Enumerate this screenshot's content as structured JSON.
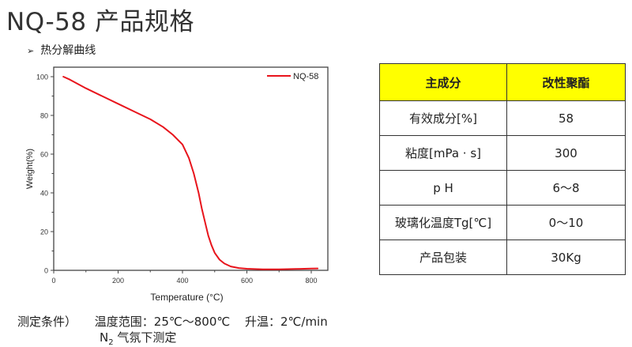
{
  "page": {
    "title": "NQ-58 产品规格",
    "subheading_bullet": "➢",
    "subheading": "热分解曲线"
  },
  "chart_data": {
    "type": "line",
    "title": "",
    "xlabel": "Temperature (°C)",
    "ylabel": "Weight(%)",
    "xlim": [
      0,
      850
    ],
    "ylim": [
      0,
      105
    ],
    "xticks": [
      0,
      200,
      400,
      600,
      800
    ],
    "yticks": [
      0,
      20,
      40,
      60,
      80,
      100
    ],
    "grid": false,
    "legend_position": "top-right",
    "series": [
      {
        "name": "NQ-58",
        "color": "#e8141c",
        "x": [
          30,
          50,
          100,
          150,
          200,
          250,
          300,
          340,
          370,
          400,
          420,
          435,
          450,
          460,
          470,
          480,
          490,
          500,
          515,
          530,
          550,
          575,
          600,
          650,
          700,
          750,
          800,
          820
        ],
        "y": [
          100,
          98.5,
          94,
          90,
          86,
          82,
          78,
          74,
          70,
          65,
          58,
          50,
          40,
          32,
          25,
          18,
          13,
          9,
          5.5,
          3.5,
          2,
          1.2,
          0.8,
          0.5,
          0.5,
          0.7,
          0.9,
          1.0
        ]
      }
    ]
  },
  "table": {
    "headers": [
      "主成分",
      "改性聚酯"
    ],
    "rows": [
      [
        "有效成分[%]",
        "58"
      ],
      [
        "粘度[mPa · s]",
        "300"
      ],
      [
        "p H",
        "6～8"
      ],
      [
        "玻璃化温度Tg[℃]",
        "0～10"
      ],
      [
        "产品包装",
        "30Kg"
      ]
    ],
    "header_color": "#ffff00"
  },
  "conditions": {
    "label": "测定条件）",
    "temp_range": "温度范围：25℃～800℃",
    "heating": "升温：2℃/min",
    "atmosphere_prefix": "N",
    "atmosphere_sub": "2",
    "atmosphere_suffix": " 气氛下测定"
  }
}
